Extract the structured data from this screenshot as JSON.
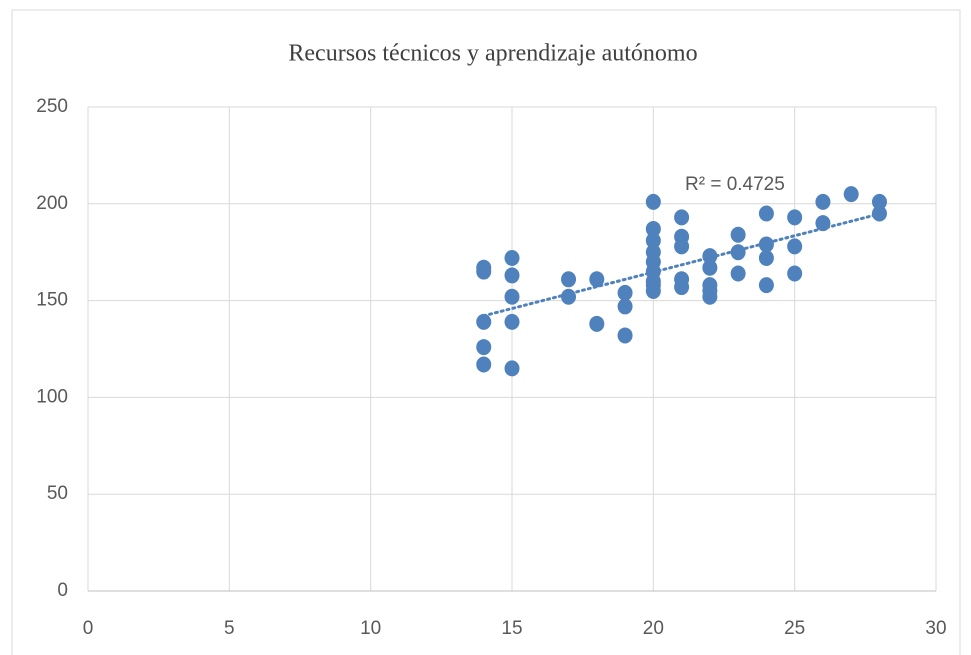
{
  "chart_data": {
    "type": "scatter",
    "title": "Recursos técnicos y aprendizaje autónomo",
    "x": [
      14,
      14,
      14,
      14,
      14,
      15,
      15,
      15,
      15,
      15,
      17,
      17,
      18,
      18,
      19,
      19,
      19,
      20,
      20,
      20,
      20,
      20,
      20,
      20,
      20,
      20,
      21,
      21,
      21,
      21,
      21,
      22,
      22,
      22,
      22,
      22,
      23,
      23,
      23,
      24,
      24,
      24,
      24,
      25,
      25,
      25,
      26,
      26,
      27,
      28,
      28
    ],
    "values": [
      167,
      165,
      139,
      126,
      117,
      172,
      163,
      152,
      139,
      115,
      161,
      152,
      161,
      138,
      154,
      147,
      132,
      201,
      187,
      181,
      175,
      170,
      165,
      160,
      155,
      158,
      193,
      183,
      178,
      161,
      157,
      173,
      167,
      158,
      152,
      155,
      184,
      175,
      164,
      195,
      179,
      172,
      158,
      193,
      178,
      164,
      201,
      190,
      205,
      201,
      195
    ],
    "color": "#4f81bd",
    "trendline": true,
    "annotation": "R² = 0.4725",
    "xlim": [
      0,
      30
    ],
    "xticks": [
      0,
      5,
      10,
      15,
      20,
      25,
      30
    ],
    "ylim": [
      0,
      250
    ],
    "yticks": [
      0,
      50,
      100,
      150,
      200,
      250
    ],
    "grid": true
  }
}
